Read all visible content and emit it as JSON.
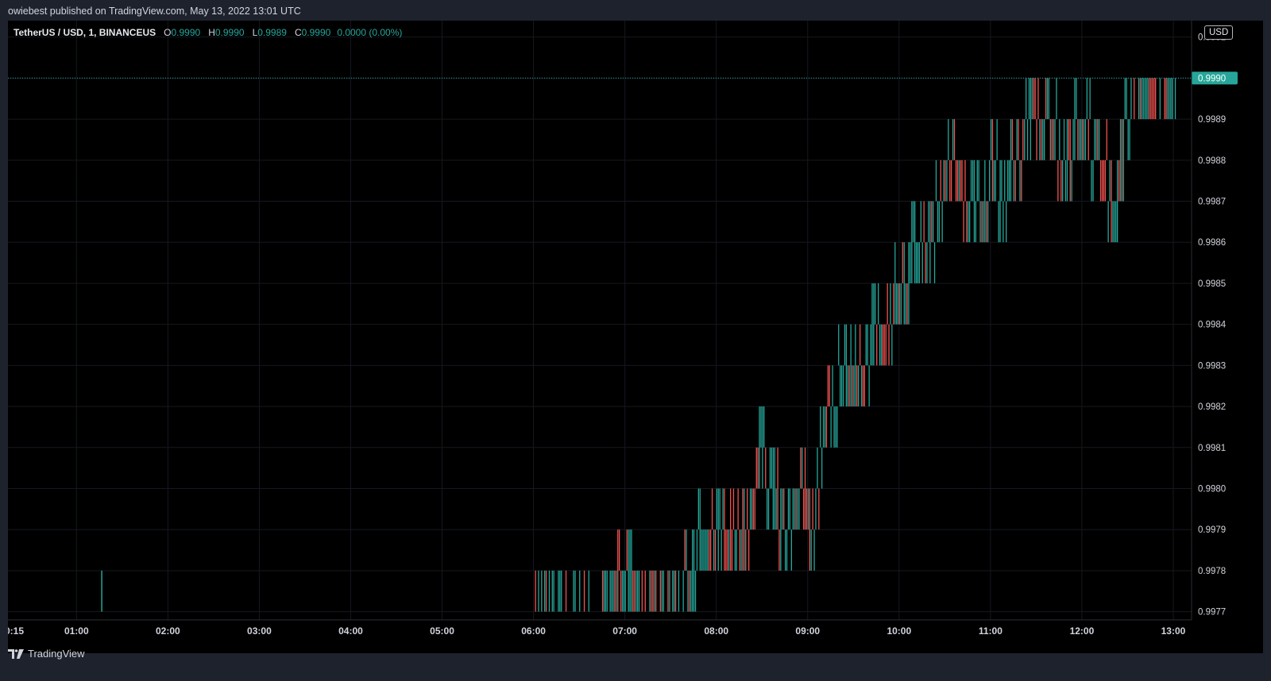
{
  "header": {
    "published": "owiebest published on TradingView.com, May 13, 2022 13:01 UTC"
  },
  "legend": {
    "symbol": "TetherUS / USD, 1, BINANCEUS",
    "open_label": "O",
    "open": "0.9990",
    "high_label": "H",
    "high": "0.9990",
    "low_label": "L",
    "low": "0.9989",
    "close_label": "C",
    "close": "0.9990",
    "change": "0.0000 (0.00%)"
  },
  "currency": "USD",
  "footer": {
    "brand": "TradingView"
  },
  "colors": {
    "up": "#26a69a",
    "down": "#ef5350",
    "background": "#000000",
    "grid": "#151821"
  },
  "chart_data": {
    "type": "candlestick",
    "interval": "1",
    "xlabel": "",
    "ylabel": "",
    "x_ticks": [
      "0:15",
      "01:00",
      "02:00",
      "03:00",
      "04:00",
      "05:00",
      "06:00",
      "07:00",
      "08:00",
      "09:00",
      "10:00",
      "11:00",
      "12:00",
      "13:00"
    ],
    "y_ticks": [
      "0.9991",
      "0.9990",
      "0.9989",
      "0.9988",
      "0.9987",
      "0.9986",
      "0.9985",
      "0.9984",
      "0.9983",
      "0.9982",
      "0.9981",
      "0.9980",
      "0.9979",
      "0.9978",
      "0.9977"
    ],
    "ylim": [
      0.99768,
      0.99914
    ],
    "x_range_hours": [
      0.25,
      13.2
    ],
    "last_price": "0.9990",
    "series": [
      {
        "name": "OHLC",
        "price_path": [
          [
            0.25,
            0.9977
          ],
          [
            1.25,
            0.9977
          ],
          [
            6.0,
            0.9977
          ],
          [
            6.7,
            0.9977
          ],
          [
            7.0,
            0.9978
          ],
          [
            7.3,
            0.9977
          ],
          [
            7.55,
            0.9977
          ],
          [
            7.7,
            0.9978
          ],
          [
            7.85,
            0.9979
          ],
          [
            8.15,
            0.9979
          ],
          [
            8.35,
            0.9979
          ],
          [
            8.45,
            0.9981
          ],
          [
            8.6,
            0.998
          ],
          [
            8.75,
            0.9979
          ],
          [
            8.95,
            0.998
          ],
          [
            9.05,
            0.9979
          ],
          [
            9.15,
            0.9981
          ],
          [
            9.25,
            0.9982
          ],
          [
            9.4,
            0.9983
          ],
          [
            9.6,
            0.9983
          ],
          [
            9.75,
            0.9984
          ],
          [
            9.9,
            0.9984
          ],
          [
            9.95,
            0.9985
          ],
          [
            10.05,
            0.9985
          ],
          [
            10.2,
            0.9986
          ],
          [
            10.35,
            0.9986
          ],
          [
            10.45,
            0.9987
          ],
          [
            10.6,
            0.9988
          ],
          [
            10.75,
            0.9987
          ],
          [
            10.95,
            0.9987
          ],
          [
            11.0,
            0.9988
          ],
          [
            11.15,
            0.9987
          ],
          [
            11.25,
            0.9988
          ],
          [
            11.45,
            0.9989
          ],
          [
            11.55,
            0.9989
          ],
          [
            11.65,
            0.9989
          ],
          [
            11.8,
            0.9988
          ],
          [
            12.0,
            0.9989
          ],
          [
            12.2,
            0.9988
          ],
          [
            12.35,
            0.9987
          ],
          [
            12.5,
            0.9989
          ],
          [
            12.6,
            0.999
          ],
          [
            12.8,
            0.999
          ],
          [
            13.0,
            0.999
          ],
          [
            13.05,
            0.999
          ]
        ]
      }
    ]
  }
}
